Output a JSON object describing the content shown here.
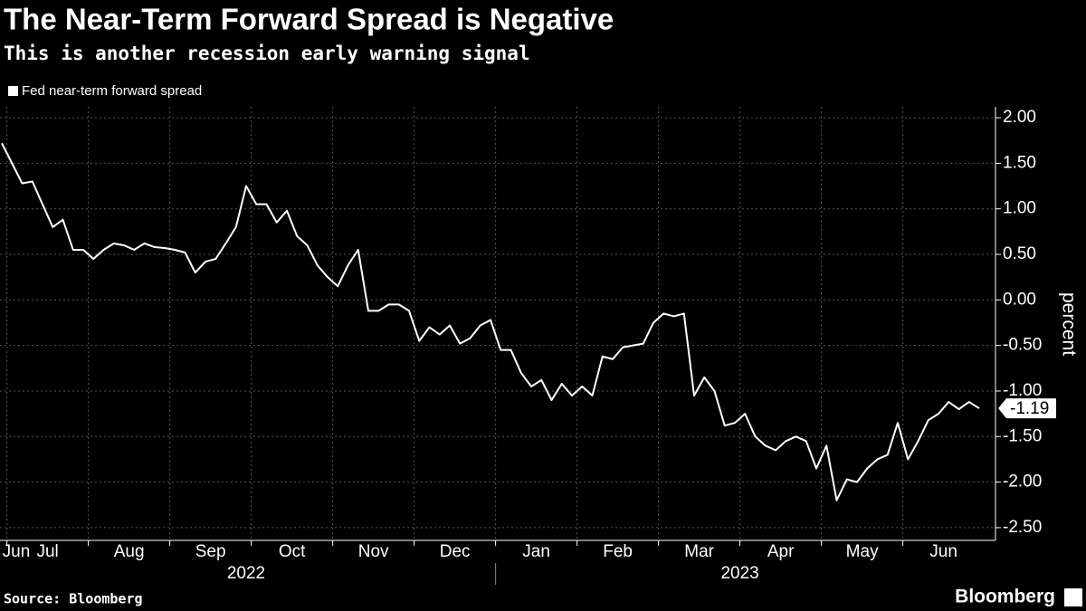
{
  "chart_data": {
    "type": "line",
    "title": "The Near-Term Forward Spread is Negative",
    "subtitle": "This is another recession early warning signal",
    "y_axis_label": "percent",
    "source": "Source: Bloomberg",
    "brand": "Bloomberg",
    "categories": [
      "Jun",
      "Jul",
      null,
      null,
      null,
      null,
      null,
      null,
      null,
      "Aug",
      null,
      null,
      null,
      null,
      null,
      null,
      null,
      "Sep",
      null,
      null,
      null,
      null,
      null,
      null,
      null,
      "Oct",
      null,
      null,
      null,
      null,
      null,
      null,
      null,
      "Nov",
      null,
      null,
      null,
      null,
      null,
      null,
      null,
      "Dec",
      null,
      null,
      null,
      null,
      null,
      null,
      null,
      "Jan",
      null,
      null,
      null,
      null,
      null,
      null,
      null,
      "Feb",
      null,
      null,
      null,
      null,
      null,
      null,
      null,
      "Mar",
      null,
      null,
      null,
      null,
      null,
      null,
      null,
      "Apr",
      null,
      null,
      null,
      null,
      null,
      null,
      null,
      "May",
      null,
      null,
      null,
      null,
      null,
      null,
      null,
      "Jun",
      null,
      null,
      null,
      null,
      null,
      null,
      null
    ],
    "x_groups": [
      {
        "label": "2022",
        "start": 0,
        "end": 48
      },
      {
        "label": "2023",
        "start": 49,
        "end": 96
      }
    ],
    "series": [
      {
        "name": "Fed near-term forward spread",
        "color": "#ffffff",
        "values": [
          1.72,
          1.5,
          1.28,
          1.3,
          1.05,
          0.8,
          0.88,
          0.55,
          0.55,
          0.45,
          0.55,
          0.62,
          0.6,
          0.55,
          0.62,
          0.58,
          0.57,
          0.55,
          0.52,
          0.3,
          0.42,
          0.45,
          0.62,
          0.8,
          1.25,
          1.05,
          1.05,
          0.85,
          0.98,
          0.7,
          0.6,
          0.38,
          0.25,
          0.15,
          0.38,
          0.55,
          -0.12,
          -0.12,
          -0.05,
          -0.05,
          -0.12,
          -0.45,
          -0.3,
          -0.38,
          -0.28,
          -0.48,
          -0.42,
          -0.28,
          -0.22,
          -0.55,
          -0.55,
          -0.8,
          -0.95,
          -0.88,
          -1.1,
          -0.92,
          -1.05,
          -0.95,
          -1.05,
          -0.62,
          -0.65,
          -0.52,
          -0.5,
          -0.48,
          -0.25,
          -0.15,
          -0.18,
          -0.15,
          -1.05,
          -0.85,
          -1.0,
          -1.38,
          -1.35,
          -1.25,
          -1.5,
          -1.6,
          -1.65,
          -1.55,
          -1.5,
          -1.55,
          -1.85,
          -1.6,
          -2.2,
          -1.97,
          -2.0,
          -1.85,
          -1.75,
          -1.7,
          -1.35,
          -1.75,
          -1.55,
          -1.32,
          -1.25,
          -1.12,
          -1.2,
          -1.12,
          -1.19
        ]
      }
    ],
    "ylim": [
      -2.64,
      2.12
    ],
    "yticks": [
      {
        "value": 2,
        "label": "2.00"
      },
      {
        "value": 1.5,
        "label": "1.50"
      },
      {
        "value": 1,
        "label": "1.00"
      },
      {
        "value": 0.5,
        "label": "0.50"
      },
      {
        "value": 0,
        "label": "0.00"
      },
      {
        "value": -0.5,
        "label": "-0.50"
      },
      {
        "value": -1,
        "label": "-1.00"
      },
      {
        "value": -1.5,
        "label": "-1.50"
      },
      {
        "value": -2,
        "label": "-2.00"
      },
      {
        "value": -2.5,
        "label": "-2.50"
      }
    ],
    "grid": true
  }
}
